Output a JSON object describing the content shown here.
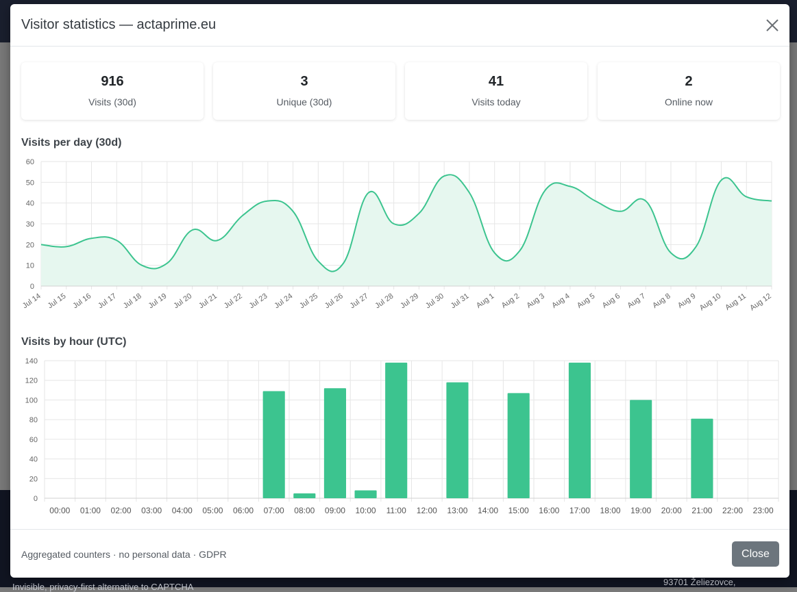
{
  "modal": {
    "title": "Visitor statistics — actaprime.eu",
    "footer_note": "Aggregated counters · no personal data · GDPR",
    "close_label": "Close"
  },
  "background": {
    "text_left": "Invisible, privacy-first alternative to CAPTCHA",
    "text_right": "93701 Želiezovce,"
  },
  "stats": [
    {
      "value": "916",
      "label": "Visits (30d)"
    },
    {
      "value": "3",
      "label": "Unique (30d)"
    },
    {
      "value": "41",
      "label": "Visits today"
    },
    {
      "value": "2",
      "label": "Online now"
    }
  ],
  "colors": {
    "accent": "#3cc48f",
    "area_fill": "#e6f7ef"
  },
  "chart_data": [
    {
      "type": "area",
      "title": "Visits per day (30d)",
      "categories": [
        "Jul 14",
        "Jul 15",
        "Jul 16",
        "Jul 17",
        "Jul 18",
        "Jul 19",
        "Jul 20",
        "Jul 21",
        "Jul 22",
        "Jul 23",
        "Jul 24",
        "Jul 25",
        "Jul 26",
        "Jul 27",
        "Jul 28",
        "Jul 29",
        "Jul 30",
        "Jul 31",
        "Aug 1",
        "Aug 2",
        "Aug 3",
        "Aug 4",
        "Aug 5",
        "Aug 6",
        "Aug 7",
        "Aug 8",
        "Aug 9",
        "Aug 10",
        "Aug 11",
        "Aug 12"
      ],
      "values": [
        20,
        19,
        23,
        22,
        10,
        11,
        27,
        22,
        34,
        41,
        36,
        12,
        11,
        45,
        30,
        35,
        53,
        45,
        16,
        17,
        46,
        48,
        41,
        36,
        41,
        16,
        19,
        51,
        43,
        41
      ],
      "ylim": [
        0,
        60
      ],
      "yticks": [
        0,
        10,
        20,
        30,
        40,
        50,
        60
      ],
      "grid": true
    },
    {
      "type": "bar",
      "title": "Visits by hour (UTC)",
      "categories": [
        "00:00",
        "01:00",
        "02:00",
        "03:00",
        "04:00",
        "05:00",
        "06:00",
        "07:00",
        "08:00",
        "09:00",
        "10:00",
        "11:00",
        "12:00",
        "13:00",
        "14:00",
        "15:00",
        "16:00",
        "17:00",
        "18:00",
        "19:00",
        "20:00",
        "21:00",
        "22:00",
        "23:00"
      ],
      "values": [
        0,
        0,
        0,
        0,
        0,
        0,
        0,
        109,
        5,
        112,
        8,
        138,
        0,
        118,
        0,
        107,
        0,
        138,
        0,
        100,
        0,
        81,
        0,
        0
      ],
      "ylim": [
        0,
        140
      ],
      "yticks": [
        0,
        20,
        40,
        60,
        80,
        100,
        120,
        140
      ],
      "grid": true
    }
  ]
}
